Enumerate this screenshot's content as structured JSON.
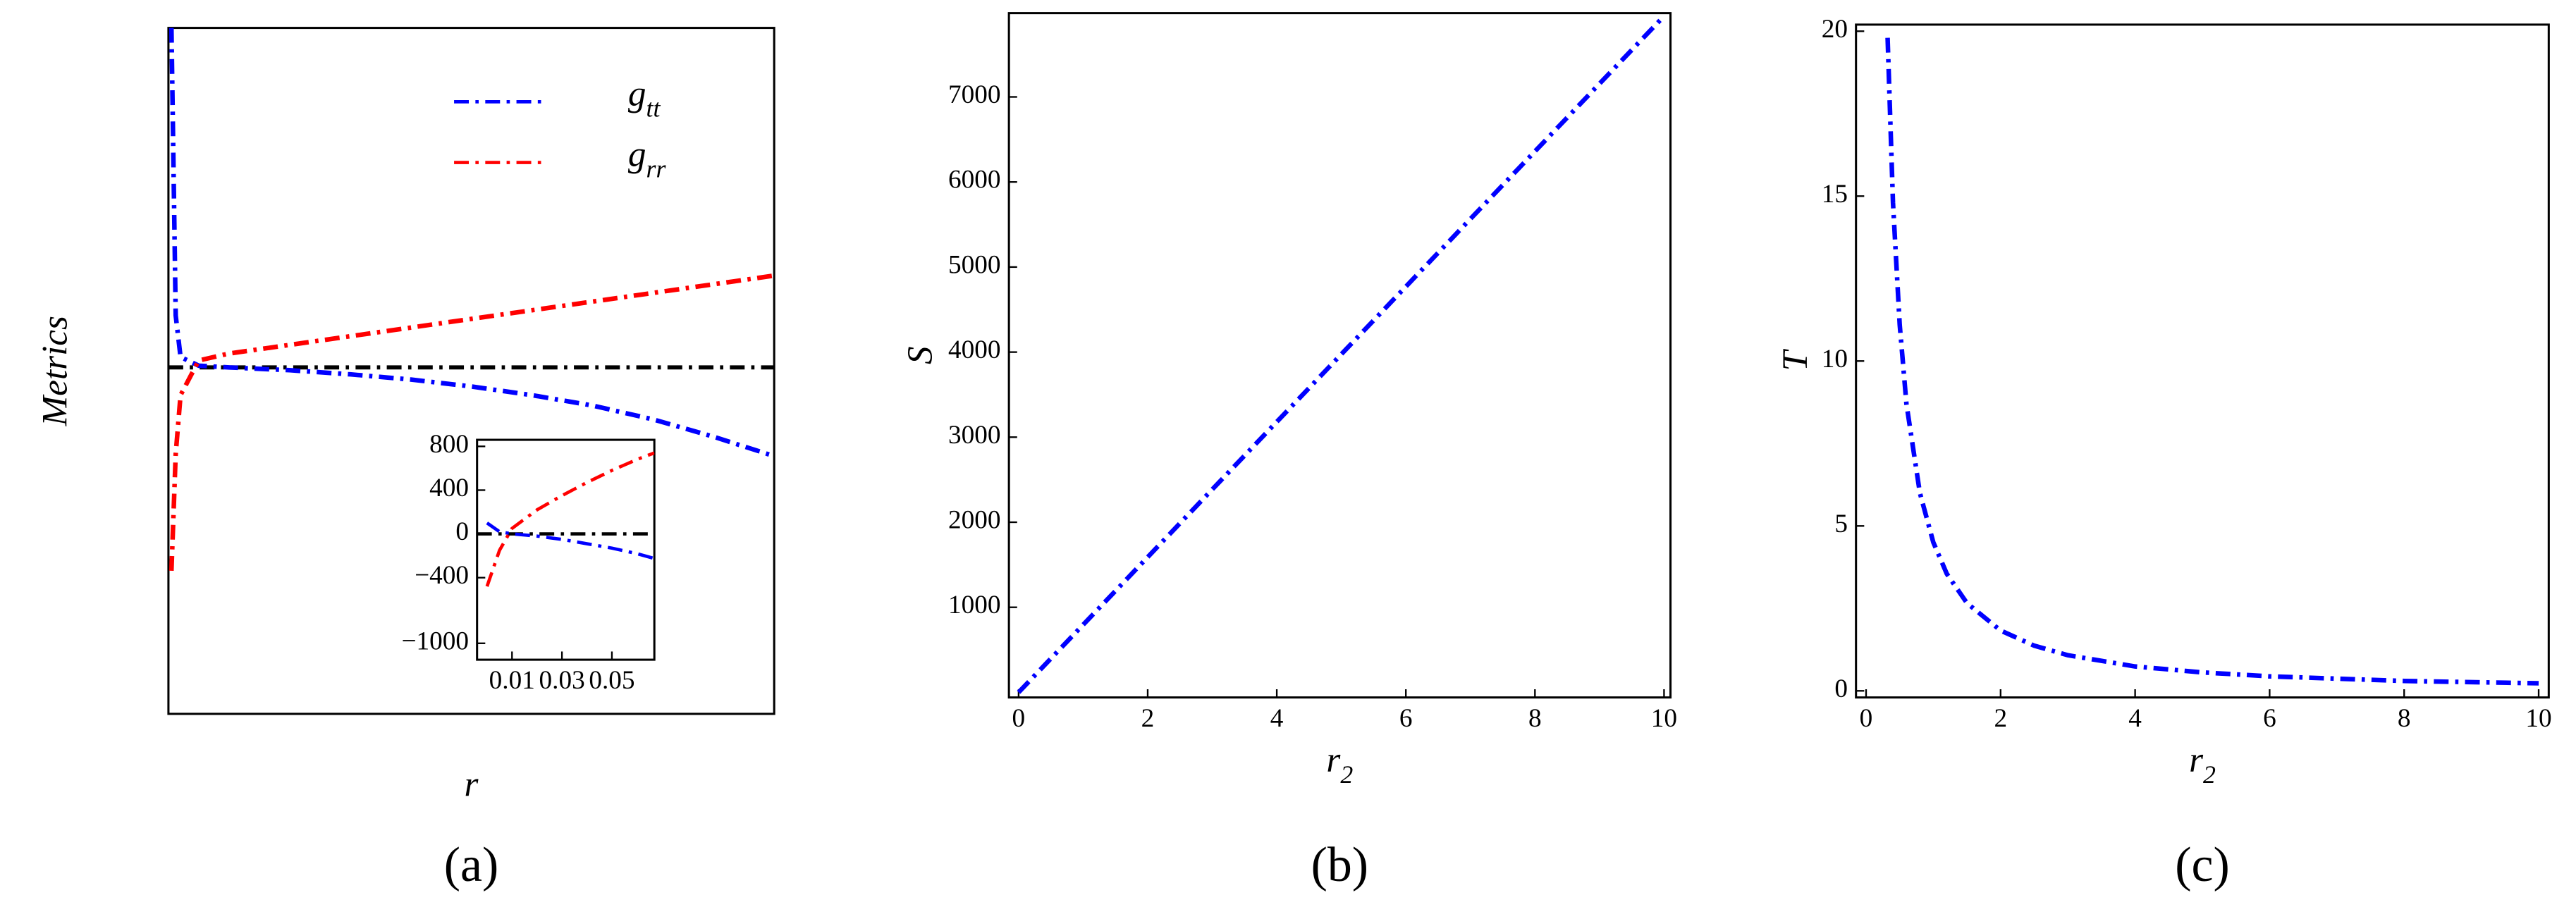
{
  "chart_data": [
    {
      "type": "line",
      "y_label": "Metrics",
      "x_label": "r",
      "panel_label": "(a)",
      "legend": "upper right",
      "xlim": [
        0,
        1
      ],
      "ylim": [
        -1000,
        980
      ],
      "x": [
        0.005,
        0.012,
        0.02,
        0.05,
        0.1,
        0.2,
        0.3,
        0.4,
        0.5,
        0.6,
        0.7,
        0.8,
        0.9,
        1.0
      ],
      "series": [
        {
          "name": "g",
          "subscript": "tt",
          "color": "#0000ff",
          "values": [
            980,
            150,
            30,
            5,
            0,
            -8,
            -20,
            -35,
            -55,
            -80,
            -110,
            -150,
            -200,
            -256
          ]
        },
        {
          "name": "g",
          "subscript": "rr",
          "color": "#ff0000",
          "values": [
            -587,
            -250,
            -80,
            20,
            40,
            65,
            90,
            115,
            140,
            165,
            190,
            215,
            240,
            265
          ]
        }
      ],
      "reference_line": {
        "value": 0,
        "color": "#000000"
      },
      "inset": {
        "type": "line",
        "xlim": [
          -0.004,
          0.067
        ],
        "ylim": [
          -1150,
          860
        ],
        "xticks": [
          0.01,
          0.03,
          0.05
        ],
        "yticks": [
          800,
          400,
          0,
          {
            "value": -400,
            "label": "−400"
          },
          {
            "value": -1000,
            "label": "−1000"
          }
        ],
        "x": [
          0.0,
          0.005,
          0.01,
          0.02,
          0.03,
          0.04,
          0.05,
          0.06,
          0.067
        ],
        "series": [
          {
            "color": "#0000ff",
            "values": [
              100,
              20,
              0,
              -20,
              -50,
              -90,
              -130,
              -180,
              -225
            ]
          },
          {
            "color": "#ff0000",
            "values": [
              -480,
              -150,
              50,
              220,
              350,
              470,
              580,
              680,
              740
            ]
          }
        ],
        "reference_line": {
          "value": 0,
          "color": "#000000"
        }
      }
    },
    {
      "type": "line",
      "y_label": "S",
      "x_label": "r",
      "x_label_subscript": "2",
      "panel_label": "(b)",
      "xlim": [
        -0.15,
        10.1
      ],
      "ylim": [
        -60,
        7985
      ],
      "xticks": [
        0,
        2,
        4,
        6,
        8,
        10
      ],
      "yticks": [
        1000,
        2000,
        3000,
        4000,
        5000,
        6000,
        7000
      ],
      "x": [
        0,
        2,
        4,
        6,
        8,
        10
      ],
      "series": [
        {
          "color": "#0000ff",
          "values": [
            0,
            1590,
            3180,
            4770,
            6360,
            7950
          ]
        }
      ]
    },
    {
      "type": "line",
      "y_label": "T",
      "x_label": "r",
      "x_label_subscript": "2",
      "panel_label": "(c)",
      "xlim": [
        -0.15,
        10.15
      ],
      "ylim": [
        -0.2,
        20.2
      ],
      "xticks": [
        0,
        2,
        4,
        6,
        8,
        10
      ],
      "yticks": [
        0,
        5,
        10,
        15,
        20
      ],
      "x": [
        0.32,
        0.4,
        0.5,
        0.6,
        0.8,
        1,
        1.2,
        1.5,
        2,
        2.5,
        3,
        4,
        5,
        6,
        8,
        10
      ],
      "series": [
        {
          "color": "#0000ff",
          "values": [
            19.8,
            14.8,
            11.1,
            8.7,
            6.0,
            4.5,
            3.55,
            2.66,
            1.83,
            1.37,
            1.08,
            0.74,
            0.56,
            0.44,
            0.3,
            0.23
          ]
        }
      ]
    }
  ]
}
